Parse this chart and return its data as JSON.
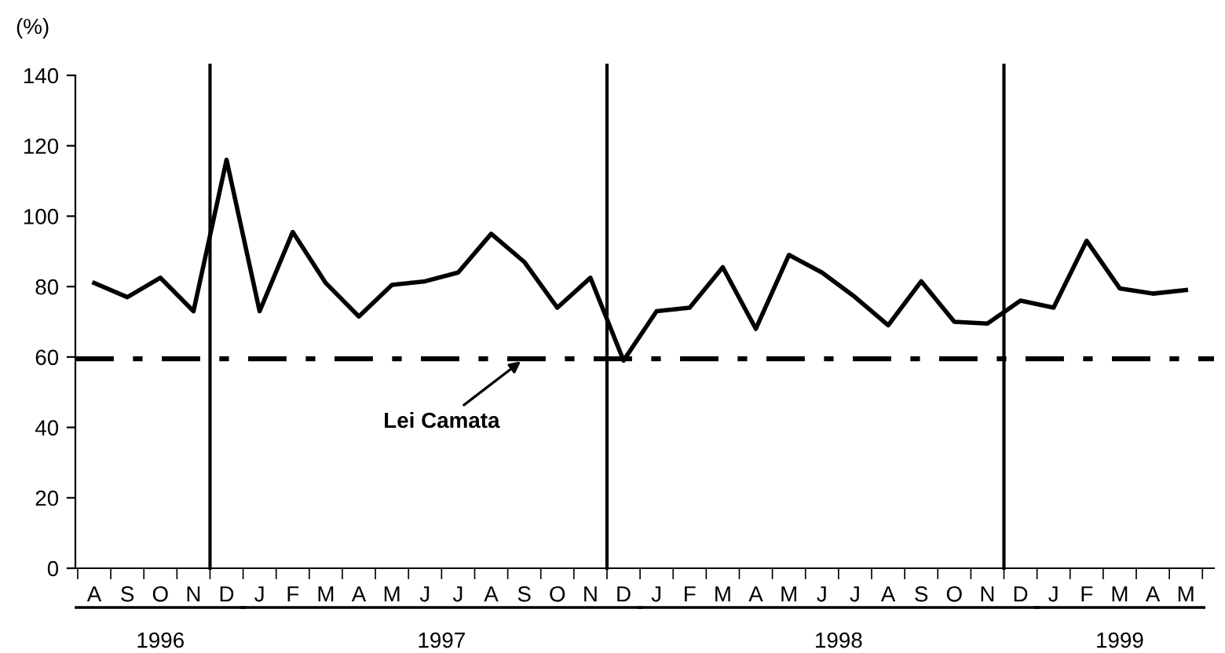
{
  "chart_data": {
    "type": "line",
    "ylabel": "(%)",
    "categories": [
      "A",
      "S",
      "O",
      "N",
      "D",
      "J",
      "F",
      "M",
      "A",
      "M",
      "J",
      "J",
      "A",
      "S",
      "O",
      "N",
      "D",
      "J",
      "F",
      "M",
      "A",
      "M",
      "J",
      "J",
      "A",
      "S",
      "O",
      "N",
      "D",
      "J",
      "F",
      "M",
      "A",
      "M"
    ],
    "series": [
      {
        "color": "#000000",
        "values": [
          81,
          77,
          82.5,
          73,
          116,
          73,
          95.5,
          81,
          71.5,
          80.5,
          81.5,
          84,
          95,
          87,
          74,
          82.5,
          59,
          73,
          74,
          85.5,
          68,
          89,
          84,
          77,
          69,
          81.5,
          70,
          69.5,
          76,
          74,
          93,
          79.5,
          78,
          79
        ]
      }
    ],
    "ylim": [
      0,
      140
    ],
    "yticks": [
      0,
      20,
      40,
      60,
      80,
      100,
      120,
      140
    ],
    "ref_lines": [
      {
        "axis": "y",
        "value": 59.5,
        "line_style": "dashdot",
        "color": "#000000"
      }
    ],
    "annotations": [
      "1996",
      "1997",
      "1998",
      "1999",
      {
        "text": "Lei Camata",
        "y": 59.5
      }
    ],
    "grid": false,
    "legend": false,
    "marker": "none",
    "line_style": "solid"
  }
}
